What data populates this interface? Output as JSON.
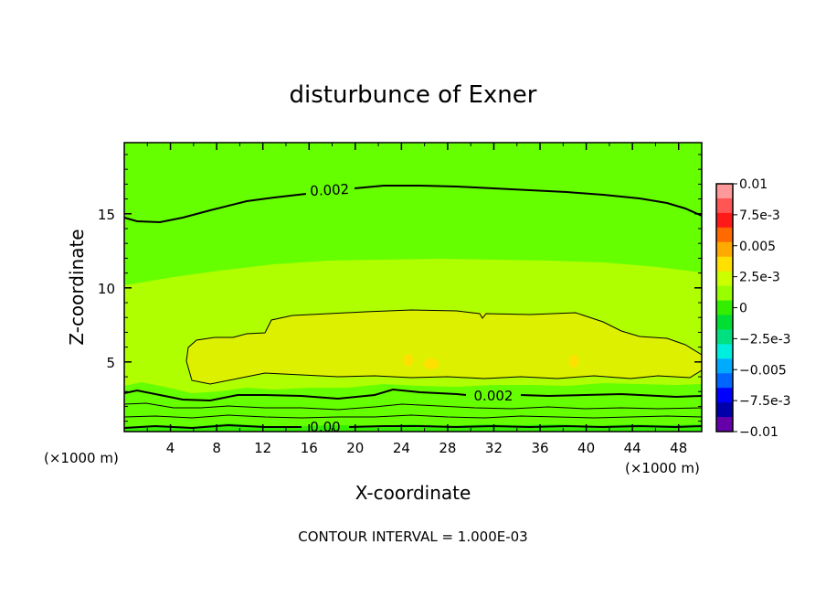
{
  "chart_data": {
    "type": "heatmap",
    "title": "disturbunce of Exner",
    "xlabel": "X-coordinate",
    "ylabel": "Z-coordinate",
    "x_unit_left": "(×1000 m)",
    "x_unit_right": "(×1000 m)",
    "footer": "CONTOUR INTERVAL = 1.000E-03",
    "xlim": [
      0,
      50
    ],
    "ylim": [
      0.3,
      19.8
    ],
    "x_ticks": [
      4,
      8,
      12,
      16,
      20,
      24,
      28,
      32,
      36,
      40,
      44,
      48
    ],
    "y_ticks": [
      5,
      10,
      15
    ],
    "contour_interval": 0.001,
    "contour_labels": [
      "0.002",
      "0.002",
      "0.00"
    ],
    "colorbar": {
      "range": [
        -0.01,
        0.01
      ],
      "labels": [
        "0.01",
        "7.5e-3",
        "0.005",
        "2.5e-3",
        "0",
        "−2.5e-3",
        "−0.005",
        "−7.5e-3",
        "−0.01"
      ],
      "colors": [
        "#ff9999",
        "#ff5555",
        "#ff1a1a",
        "#ff6a00",
        "#ffaa00",
        "#ffe000",
        "#ccff00",
        "#99ff00",
        "#33ee00",
        "#00dd33",
        "#00e080",
        "#00eedd",
        "#00aaff",
        "#0066ff",
        "#0000ff",
        "#0000aa",
        "#6600aa"
      ]
    },
    "fields": [
      {
        "level": "0 to 1e-3",
        "color": "#33ee00",
        "region": "near-ground layer, z < 0.5"
      },
      {
        "level": "1e-3 to 2e-3",
        "color": "#66ff00",
        "region": "z 0.5-3 and z 12-20"
      },
      {
        "level": "2e-3 to 3e-3",
        "color": "#b0ff00",
        "region": "z 3-12"
      },
      {
        "level": "3e-3 to 4e-3",
        "color": "#ddf000",
        "region": "x 5-50, z 3.5-8.5"
      },
      {
        "level": "4e-3 to 5e-3",
        "color": "#ffe000",
        "region": "small spots near x 25-27 and x 39, z 5"
      }
    ]
  }
}
